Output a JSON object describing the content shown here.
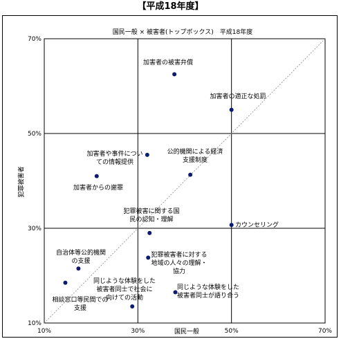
{
  "page_title": "【平成18年度】",
  "chart_data": {
    "type": "scatter",
    "title": "国民一般 × 被害者(トップボックス)　平成18年度",
    "xlabel": "国民一般",
    "ylabel": "犯罪被害者",
    "xlim": [
      10,
      70
    ],
    "ylim": [
      10,
      70
    ],
    "x_ticks": [
      "10%",
      "30%",
      "50%",
      "70%"
    ],
    "y_ticks": [
      "10%",
      "30%",
      "50%",
      "70%"
    ],
    "grid": true,
    "diagonal_line": true,
    "points": [
      {
        "label": "加害者の被害弁償",
        "x": 37.8,
        "y": 62.5
      },
      {
        "label": "加害者の適正な処罰",
        "x": 50.0,
        "y": 55.0
      },
      {
        "label": "加害者や事件についての情報提供",
        "x": 32.0,
        "y": 45.5
      },
      {
        "label": "公的機関による経済支援制度",
        "x": 41.2,
        "y": 41.3
      },
      {
        "label": "加害者からの謝罪",
        "x": 21.2,
        "y": 41.0
      },
      {
        "label": "犯罪被害に関する国民の認知・理解",
        "x": 32.5,
        "y": 29.0
      },
      {
        "label": "カウンセリング",
        "x": 50.0,
        "y": 30.7
      },
      {
        "label": "犯罪被害者に対する地域の人々の理解・協力",
        "x": 32.2,
        "y": 23.8
      },
      {
        "label": "自治体等公的機関の支援",
        "x": 17.3,
        "y": 21.5
      },
      {
        "label": "相談窓口等民間での支援",
        "x": 14.5,
        "y": 18.5
      },
      {
        "label": "同じような体験をした被害者同士で社会に向けての活動",
        "x": 28.8,
        "y": 13.5
      },
      {
        "label": "同じような体験をした被害者同士が語り合う",
        "x": 38.0,
        "y": 16.5
      }
    ]
  }
}
